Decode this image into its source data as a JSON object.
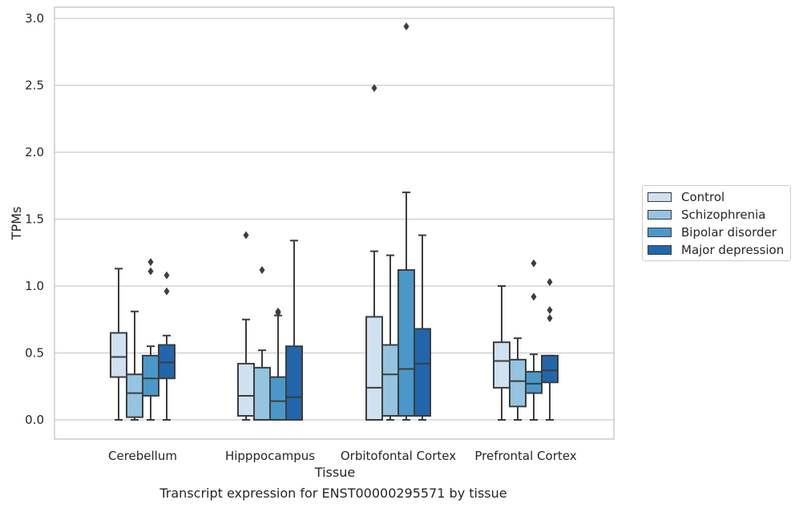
{
  "chart_data": {
    "type": "box",
    "title": "",
    "xlabel": "Tissue",
    "ylabel": "TPMs",
    "ylim": [
      -0.14,
      3.08
    ],
    "yticks": [
      "0.0",
      "0.5",
      "1.0",
      "1.5",
      "2.0",
      "2.5",
      "3.0"
    ],
    "ytick_values": [
      0,
      0.5,
      1.0,
      1.5,
      2.0,
      2.5,
      3.0
    ],
    "grid": true,
    "legend_position": "right",
    "categories": [
      "Cerebellum",
      "Hipppocampus",
      "Orbitofontal Cortex",
      "Prefrontal Cortex"
    ],
    "series": [
      {
        "name": "Control",
        "color": "#d0e1f2",
        "boxes": [
          {
            "min": 0,
            "q1": 0.32,
            "median": 0.47,
            "q3": 0.65,
            "max": 1.13,
            "outliers": []
          },
          {
            "min": 0,
            "q1": 0.03,
            "median": 0.18,
            "q3": 0.42,
            "max": 0.75,
            "outliers": [
              1.38
            ]
          },
          {
            "min": 0,
            "q1": 0,
            "median": 0.24,
            "q3": 0.77,
            "max": 1.26,
            "outliers": [
              2.48
            ]
          },
          {
            "min": 0,
            "q1": 0.24,
            "median": 0.44,
            "q3": 0.58,
            "max": 1.0,
            "outliers": []
          }
        ]
      },
      {
        "name": "Schizophrenia",
        "color": "#94c4df",
        "boxes": [
          {
            "min": 0,
            "q1": 0.02,
            "median": 0.2,
            "q3": 0.34,
            "max": 0.81,
            "outliers": []
          },
          {
            "min": 0,
            "q1": 0,
            "median": 0,
            "q3": 0.39,
            "max": 0.52,
            "outliers": [
              1.12
            ]
          },
          {
            "min": 0,
            "q1": 0.03,
            "median": 0.34,
            "q3": 0.56,
            "max": 1.23,
            "outliers": []
          },
          {
            "min": 0,
            "q1": 0.1,
            "median": 0.29,
            "q3": 0.45,
            "max": 0.61,
            "outliers": []
          }
        ]
      },
      {
        "name": "Bipolar disorder",
        "color": "#4a98c9",
        "boxes": [
          {
            "min": 0,
            "q1": 0.18,
            "median": 0.31,
            "q3": 0.48,
            "max": 0.55,
            "outliers": [
              1.11,
              1.18
            ]
          },
          {
            "min": 0,
            "q1": 0,
            "median": 0.14,
            "q3": 0.32,
            "max": 0.78,
            "outliers": [
              0.8,
              0.81
            ]
          },
          {
            "min": 0,
            "q1": 0.03,
            "median": 0.38,
            "q3": 1.12,
            "max": 1.7,
            "outliers": [
              2.94
            ]
          },
          {
            "min": 0,
            "q1": 0.2,
            "median": 0.27,
            "q3": 0.36,
            "max": 0.49,
            "outliers": [
              0.92,
              1.17
            ]
          }
        ]
      },
      {
        "name": "Major depression",
        "color": "#2166ac",
        "boxes": [
          {
            "min": 0,
            "q1": 0.31,
            "median": 0.43,
            "q3": 0.56,
            "max": 0.63,
            "outliers": [
              0.96,
              1.08
            ]
          },
          {
            "min": 0,
            "q1": 0,
            "median": 0.17,
            "q3": 0.55,
            "max": 1.34,
            "outliers": []
          },
          {
            "min": 0,
            "q1": 0.03,
            "median": 0.42,
            "q3": 0.68,
            "max": 1.38,
            "outliers": []
          },
          {
            "min": 0,
            "q1": 0.28,
            "median": 0.37,
            "q3": 0.48,
            "max": 0.48,
            "outliers": [
              0.76,
              0.82,
              1.03
            ]
          }
        ]
      }
    ]
  },
  "caption": "Transcript expression for ENST00000295571 by tissue"
}
